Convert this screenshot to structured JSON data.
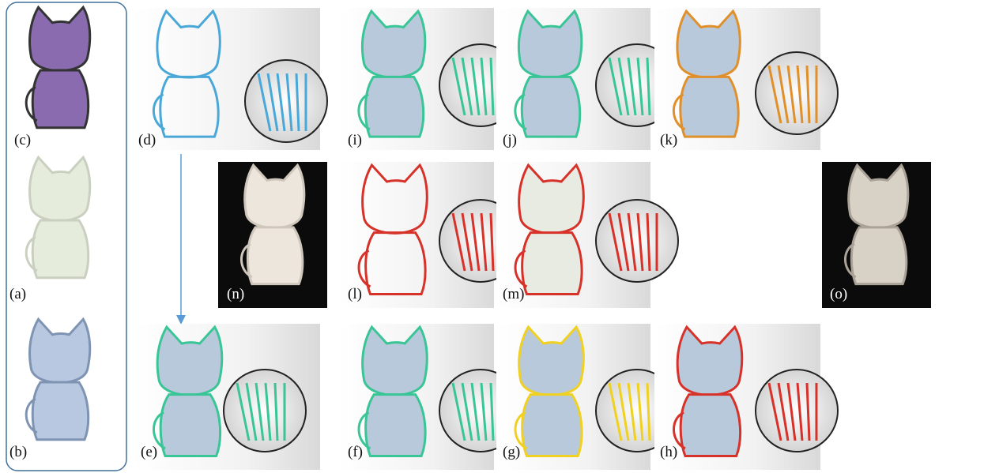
{
  "panels": [
    {
      "label": "(c)"
    },
    {
      "label": "(a)"
    },
    {
      "label": "(b)"
    },
    {
      "label": "(d)"
    },
    {
      "label": "(i)"
    },
    {
      "label": "(j)"
    },
    {
      "label": "(k)"
    },
    {
      "label": "(n)"
    },
    {
      "label": "(l)"
    },
    {
      "label": "(m)"
    },
    {
      "label": "(o)"
    },
    {
      "label": "(e)"
    },
    {
      "label": "(f)"
    },
    {
      "label": "(g)"
    },
    {
      "label": "(h)"
    }
  ]
}
